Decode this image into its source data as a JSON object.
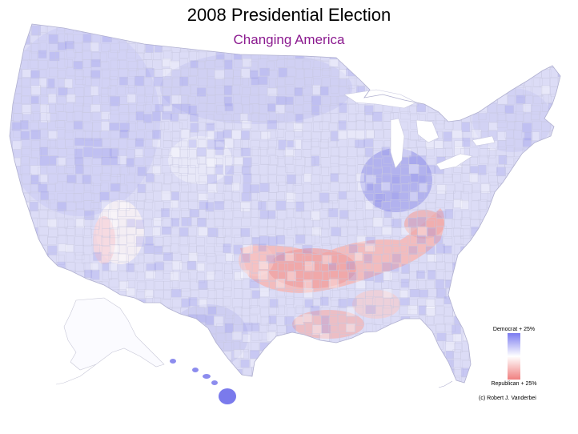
{
  "title": "2008 Presidential Election",
  "subtitle": "Changing America",
  "legend": {
    "top_label": "Democrat + 25%",
    "bottom_label": "Republican + 25%",
    "top_color": "#7b7bf0",
    "bottom_color": "#f08080"
  },
  "credit": "(c) Robert J. Vanderbei",
  "colors": {
    "title": "#000000",
    "subtitle": "#8b1a8f",
    "democrat_shift": "#9a9af2",
    "republican_shift": "#f29a9a",
    "neutral": "#ffffff",
    "county_border": "#c8c8e0"
  }
}
